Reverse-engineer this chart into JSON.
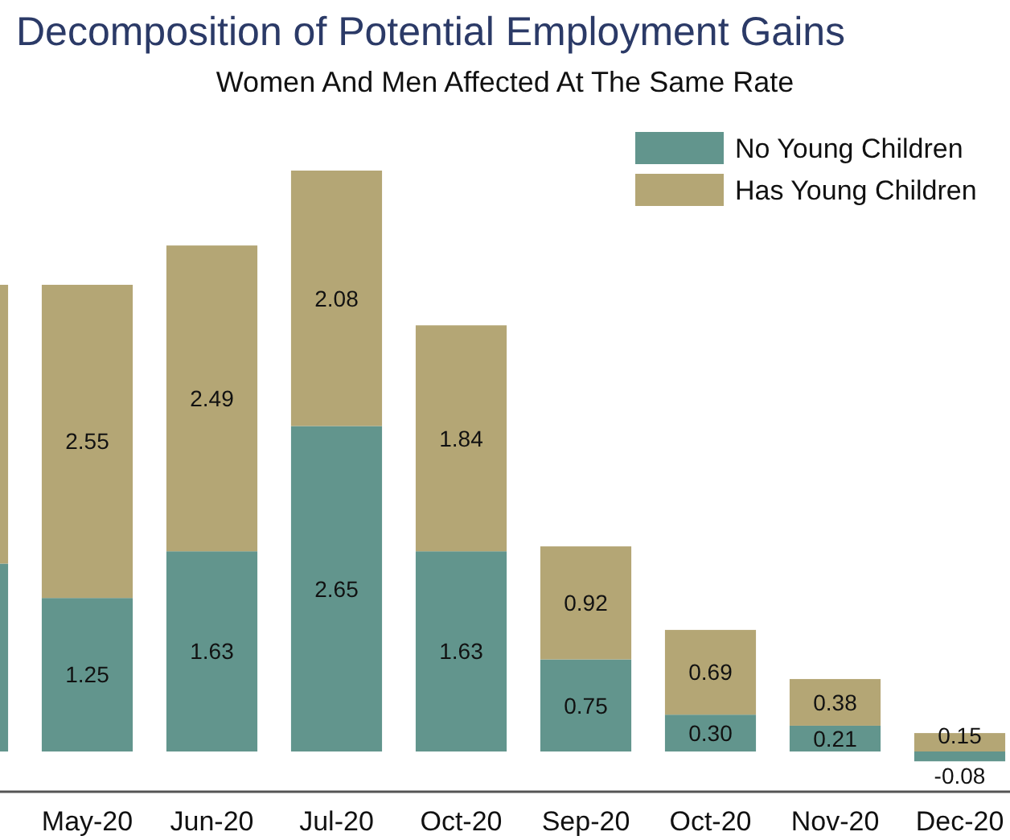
{
  "chart_data": {
    "type": "bar",
    "title": "Decomposition of Potential Employment Gains",
    "subtitle": "Women And Men Affected At The Same Rate",
    "categories": [
      null,
      "May-20",
      "Jun-20",
      "Jul-20",
      "Oct-20",
      "Sep-20",
      "Oct-20",
      "Nov-20",
      "Dec-20"
    ],
    "stacked": true,
    "legend": "top right",
    "series": [
      {
        "name": "No Young Children",
        "color": "#62958d",
        "values": [
          1.53,
          1.25,
          1.63,
          2.65,
          1.63,
          0.75,
          0.3,
          0.21,
          -0.08
        ],
        "value_labels": [
          null,
          "1.25",
          "1.63",
          "2.65",
          "1.63",
          "0.75",
          "0.30",
          "0.21",
          "-0.08"
        ]
      },
      {
        "name": "Has Young Children",
        "color": "#b4a675",
        "values": [
          2.27,
          2.55,
          2.49,
          2.08,
          1.84,
          0.92,
          0.69,
          0.38,
          0.15
        ],
        "value_labels": [
          null,
          "2.55",
          "2.49",
          "2.08",
          "1.84",
          "0.92",
          "0.69",
          "0.38",
          "0.15"
        ]
      }
    ]
  }
}
